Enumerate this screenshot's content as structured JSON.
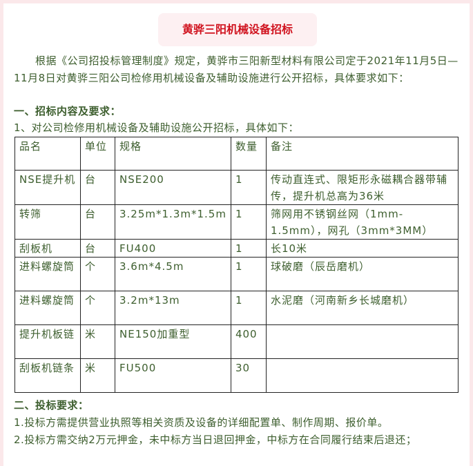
{
  "title": "黄骅三阳机械设备招标",
  "intro": "　　根据《公司招投标管理制度》规定，黄骅市三阳新型材料有限公司定于2021年11月5日—11月8日对黄骅三阳公司检修用机械设备及辅助设施进行公开招标，具体要求如下：",
  "section1": "一、招标内容及要求：",
  "item1": "1、对公司检修用机械设备及辅助设施公开招标，具体如下：",
  "table": {
    "headers": [
      "品名",
      "单位",
      "规格",
      "数量",
      "备注"
    ],
    "rows": [
      [
        "NSE提升机",
        "台",
        "NSE200",
        "1",
        "传动直连式、限矩形永磁耦合器带辅传，提升机总高为36米"
      ],
      [
        "转筛",
        "台",
        "3.25m*1.3m*1.5m",
        "1",
        "筛网用不锈钢丝网（1mm-1.5mm），网孔（3mm*3MM）"
      ],
      [
        "刮板机",
        "台",
        "FU400",
        "1",
        "长10米"
      ],
      [
        "进料螺旋筒",
        "个",
        "3.6m*4.5m",
        "1",
        "球破磨（辰岳磨机）"
      ],
      [
        "进料螺旋筒",
        "个",
        "3.2m*13m",
        "1",
        "水泥磨（河南新乡长城磨机）"
      ],
      [
        "提升机板链",
        "米",
        "NE150加重型",
        "400",
        ""
      ],
      [
        "刮板机链条",
        "米",
        "FU500",
        "30",
        ""
      ]
    ]
  },
  "section2": "二、投标要求：",
  "req1": "1.投标方需提供营业执照等相关资质及设备的详细配置单、制作周期、报价单。",
  "req2": "2.投标方需交纳2万元押金，未中标方当日退回押金，中标方在合同履行结束后退还；"
}
